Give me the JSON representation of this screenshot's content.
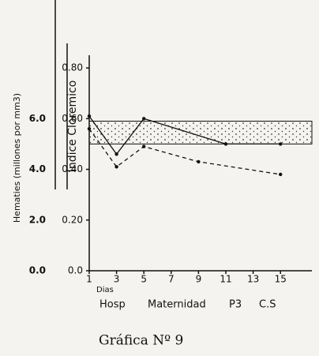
{
  "chart_data": {
    "type": "line",
    "title": "Gráfica Nº 9",
    "y_label": "Indice Cloremico",
    "y2_label": "Hematies (millones por mm3)",
    "x_labels": [
      "Dias",
      "Hosp",
      "Maternidad",
      "P3",
      "C.S"
    ],
    "x": [
      1,
      3,
      5,
      9,
      11,
      15
    ],
    "series": [
      {
        "color": "#111",
        "dash": "solid",
        "axis": "y",
        "values": [
          0.61,
          0.46,
          0.6,
          null,
          0.5,
          0.5
        ]
      },
      {
        "color": "#111",
        "dash": "dashed",
        "axis": "y2",
        "values": [
          5.6,
          4.1,
          4.9,
          4.3,
          null,
          3.8
        ]
      }
    ],
    "band": [
      0.5,
      0.59
    ],
    "xlim": [
      1,
      17.3
    ],
    "xticks": [
      1,
      3,
      5,
      7,
      9,
      11,
      13,
      15
    ],
    "ylim": [
      0,
      0.85
    ],
    "yticks": [
      {
        "value": 0,
        "label": "0.0"
      },
      {
        "value": 0.2,
        "label": "0.20"
      },
      {
        "value": 0.4,
        "label": "0.40"
      },
      {
        "value": 0.6,
        "label": "0.60"
      },
      {
        "value": 0.8,
        "label": "0.80"
      }
    ],
    "y2lim": [
      0,
      8.5
    ],
    "y2ticks": [
      {
        "value": 0,
        "label": "0.0"
      },
      {
        "value": 2,
        "label": "2.0"
      },
      {
        "value": 4,
        "label": "4.0"
      },
      {
        "value": 6,
        "label": "6.0"
      }
    ]
  }
}
